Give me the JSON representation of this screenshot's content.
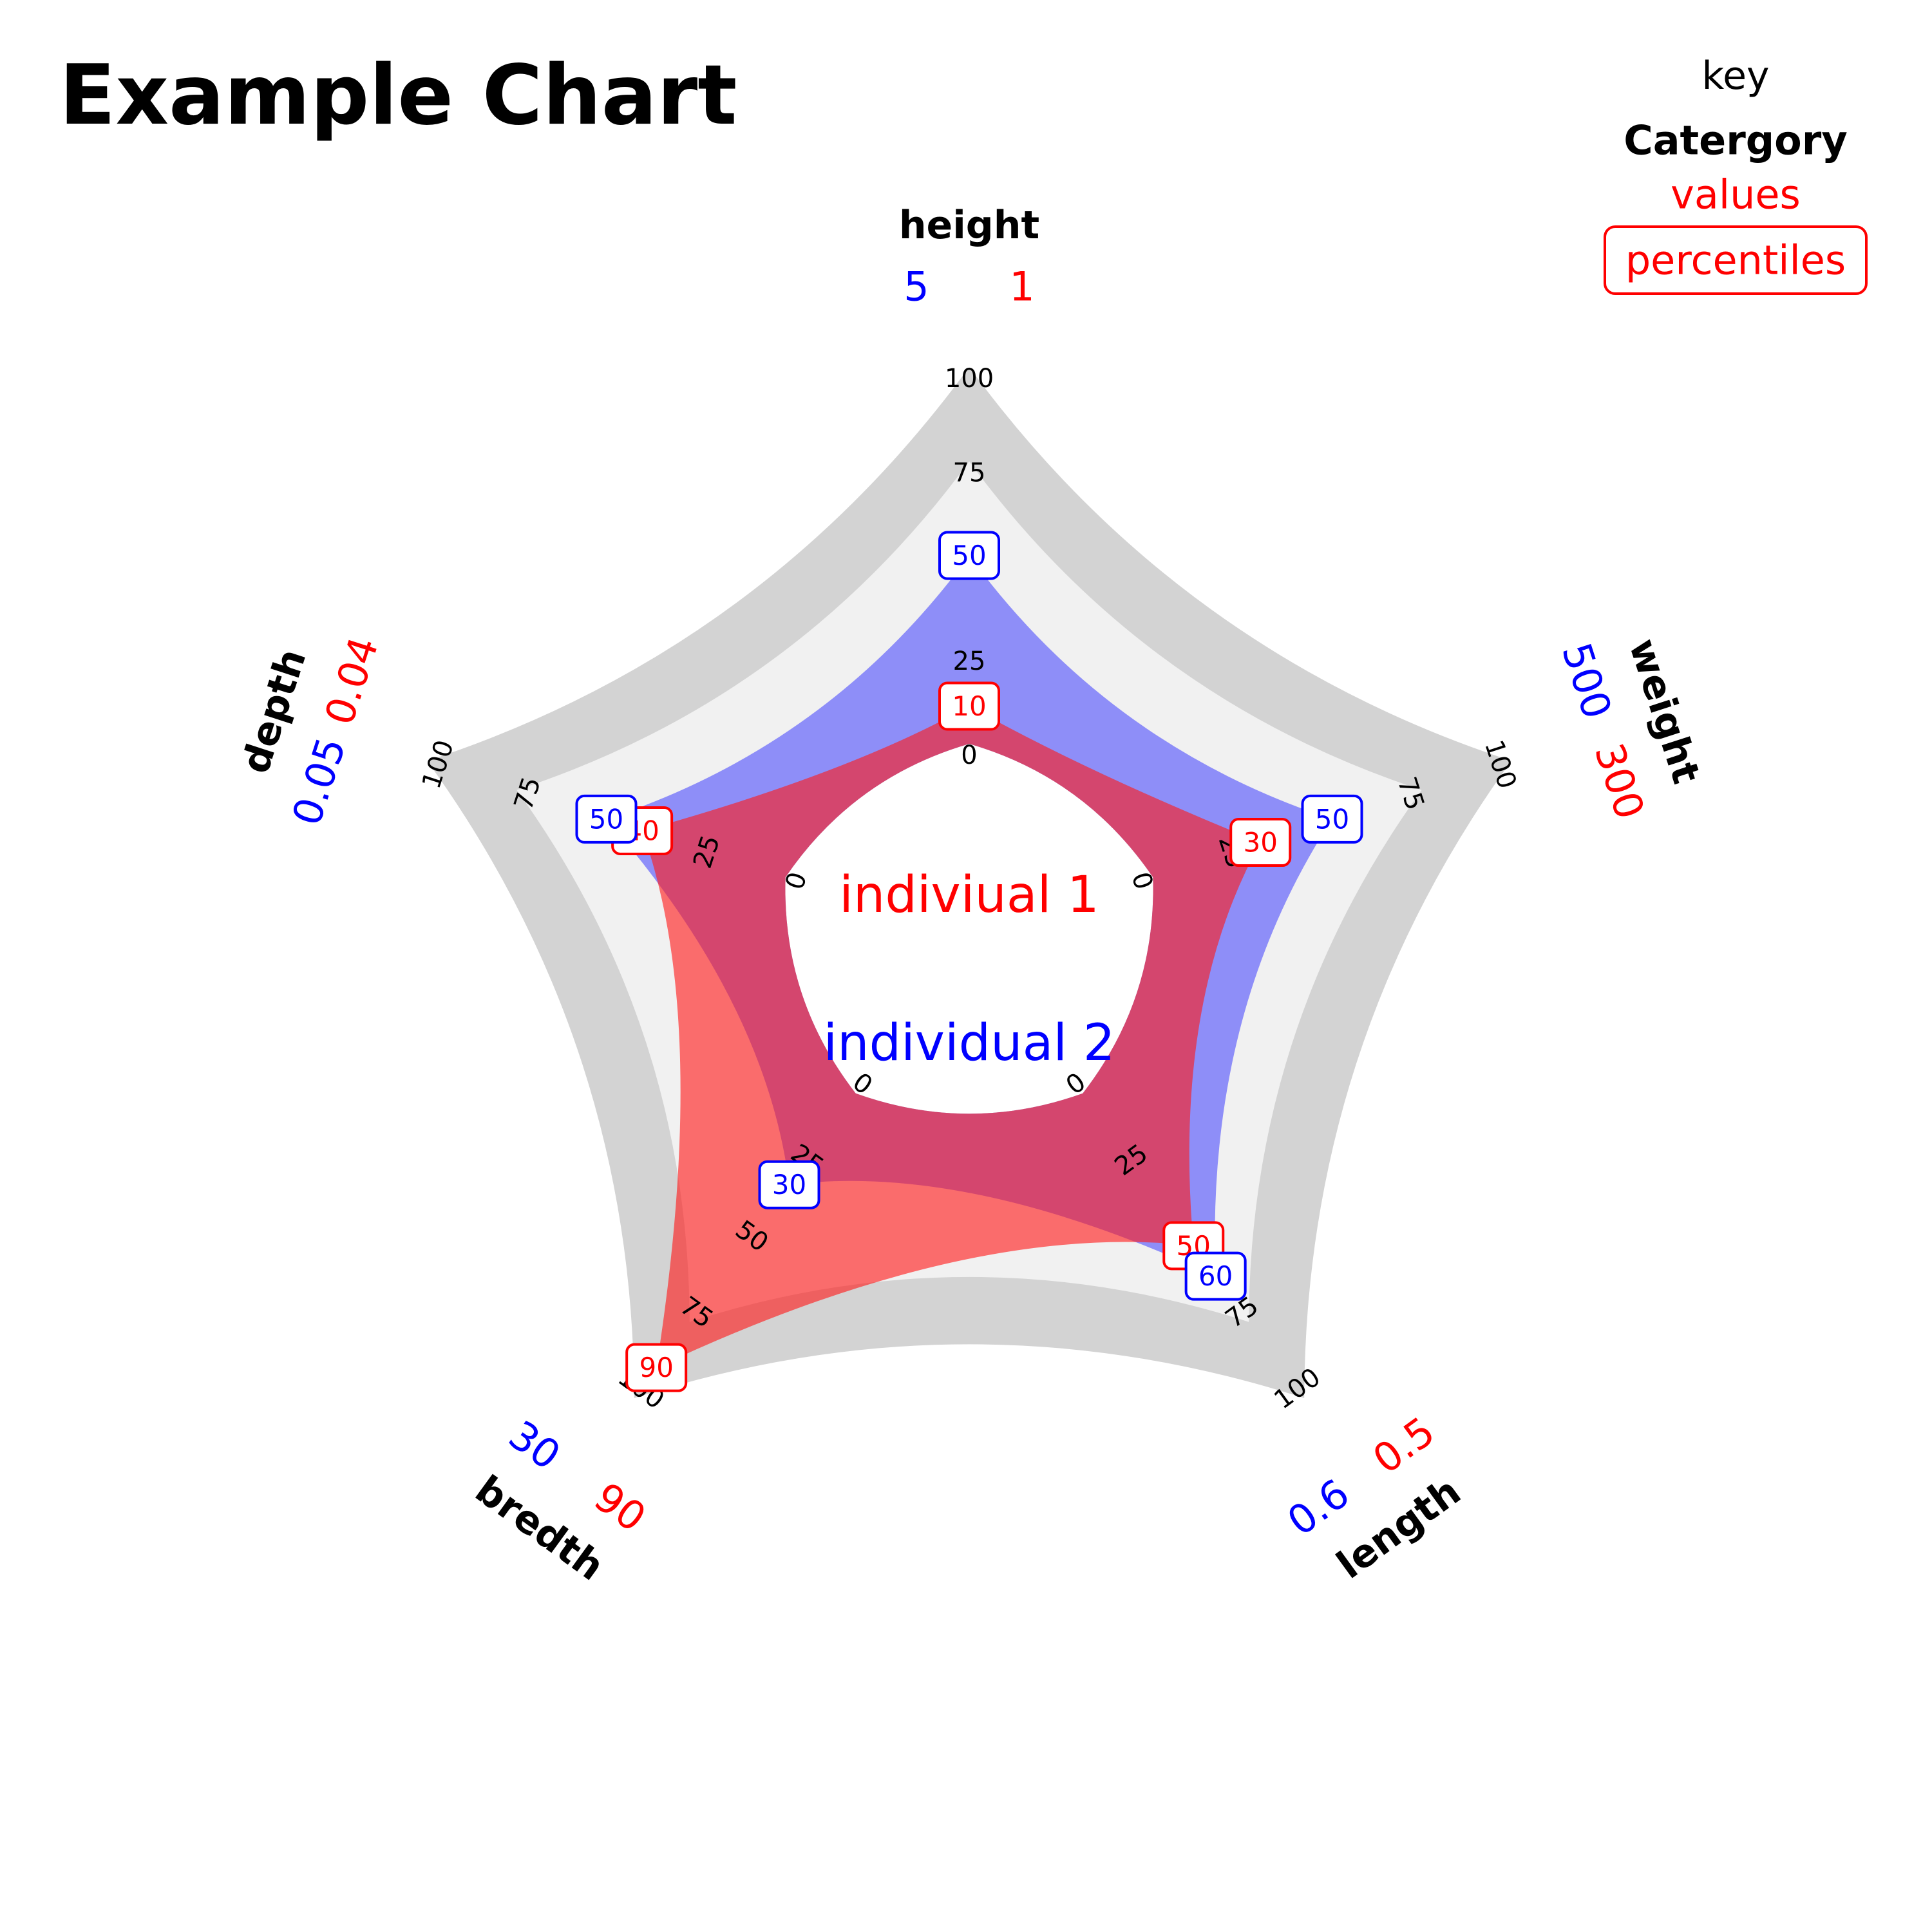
{
  "colors": {
    "individual_1": "#ff0000",
    "individual_2": "#0000ff",
    "band_outer": "#d3d3d3",
    "band_inner": "#f1f1f1",
    "axis_label": "#000000",
    "fill_1": "#ff1a1a",
    "fill_2": "#3333ff"
  },
  "chart_data": {
    "type": "radar",
    "title": "Example Chart",
    "radial_range": [
      0,
      100
    ],
    "radial_ticks": [
      0,
      25,
      50,
      75,
      100
    ],
    "axes": [
      {
        "name": "height",
        "value_1": "1",
        "value_2": "5"
      },
      {
        "name": "weight",
        "value_1": "300",
        "value_2": "500"
      },
      {
        "name": "length",
        "value_1": "0.5",
        "value_2": "0.6"
      },
      {
        "name": "bredth",
        "value_1": "90",
        "value_2": "30"
      },
      {
        "name": "depth",
        "value_1": "0.04",
        "value_2": "0.05"
      }
    ],
    "series": [
      {
        "name": "indiviual 1",
        "color": "#ff0000",
        "percentiles": [
          10,
          30,
          50,
          90,
          40
        ]
      },
      {
        "name": "individual 2",
        "color": "#0000ff",
        "percentiles": [
          50,
          50,
          60,
          30,
          50
        ]
      }
    ],
    "key": {
      "heading": "key",
      "category": "Catergory",
      "values": "values",
      "percentiles": "percentiles"
    }
  }
}
